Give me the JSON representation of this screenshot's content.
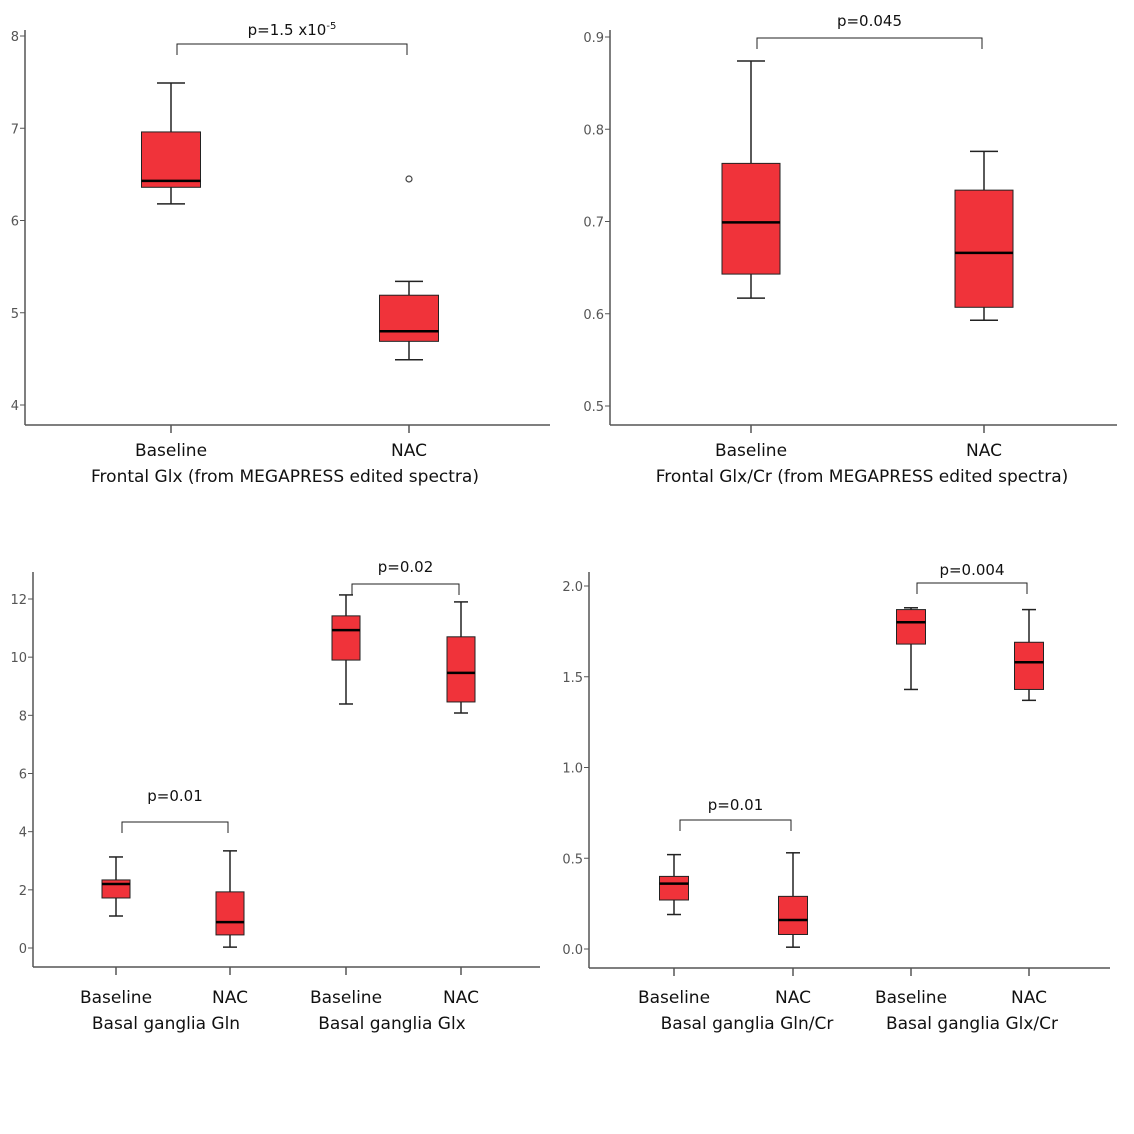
{
  "colors": {
    "box_fill": "#f0333a",
    "stroke": "#222222",
    "axis": "#555555"
  },
  "chart_data": [
    {
      "type": "box",
      "title": "",
      "ylabel": "",
      "yticks": [
        4,
        5,
        6,
        7,
        8
      ],
      "ylim": [
        3.78,
        8.07
      ],
      "categories": [
        "Baseline",
        "NAC"
      ],
      "group_titles": [
        "Frontal Glx (from MEGAPRESS edited spectra)"
      ],
      "boxes": [
        {
          "name": "Baseline",
          "min": 6.18,
          "q1": 6.36,
          "median": 6.43,
          "q3": 6.96,
          "max": 7.49,
          "outliers": []
        },
        {
          "name": "NAC",
          "min": 4.49,
          "q1": 4.69,
          "median": 4.8,
          "q3": 5.19,
          "max": 5.34,
          "outliers": [
            6.45
          ]
        }
      ],
      "annotations": [
        {
          "pair": [
            0,
            1
          ],
          "text": "p=1.5 x10",
          "sup": "-5"
        }
      ]
    },
    {
      "type": "box",
      "title": "",
      "ylabel": "",
      "yticks": [
        0.5,
        0.6,
        0.7,
        0.8,
        0.9
      ],
      "ylim": [
        0.478,
        0.906
      ],
      "categories": [
        "Baseline",
        "NAC"
      ],
      "group_titles": [
        "Frontal Glx/Cr (from MEGAPRESS edited spectra)"
      ],
      "boxes": [
        {
          "name": "Baseline",
          "min": 0.617,
          "q1": 0.643,
          "median": 0.699,
          "q3": 0.763,
          "max": 0.874,
          "outliers": []
        },
        {
          "name": "NAC",
          "min": 0.593,
          "q1": 0.607,
          "median": 0.666,
          "q3": 0.734,
          "max": 0.776,
          "outliers": []
        }
      ],
      "annotations": [
        {
          "pair": [
            0,
            1
          ],
          "text": "p=0.045",
          "sup": ""
        }
      ]
    },
    {
      "type": "box",
      "title": "",
      "ylabel": "",
      "yticks": [
        0,
        2,
        4,
        6,
        8,
        10,
        12
      ],
      "ylim": [
        -0.65,
        12.9
      ],
      "categories": [
        "Baseline",
        "NAC",
        "Baseline",
        "NAC"
      ],
      "group_titles": [
        "Basal ganglia Gln",
        "Basal ganglia Glx"
      ],
      "boxes": [
        {
          "name": "Gln Baseline",
          "min": 1.1,
          "q1": 1.72,
          "median": 2.2,
          "q3": 2.34,
          "max": 3.13,
          "outliers": []
        },
        {
          "name": "Gln NAC",
          "min": 0.03,
          "q1": 0.45,
          "median": 0.89,
          "q3": 1.93,
          "max": 3.34,
          "outliers": []
        },
        {
          "name": "Glx Baseline",
          "min": 8.39,
          "q1": 9.9,
          "median": 10.93,
          "q3": 11.42,
          "max": 12.14,
          "outliers": []
        },
        {
          "name": "Glx NAC",
          "min": 8.08,
          "q1": 8.46,
          "median": 9.46,
          "q3": 10.7,
          "max": 11.9,
          "outliers": []
        }
      ],
      "annotations": [
        {
          "pair": [
            0,
            1
          ],
          "text": "p=0.01",
          "sup": ""
        },
        {
          "pair": [
            2,
            3
          ],
          "text": "p=0.02",
          "sup": ""
        }
      ]
    },
    {
      "type": "box",
      "title": "",
      "ylabel": "",
      "yticks": [
        0.0,
        0.5,
        1.0,
        1.5,
        2.0
      ],
      "ylim": [
        -0.1,
        2.0
      ],
      "tick_labels": [
        "0.0",
        "0.5",
        "1.0",
        "1.5",
        "2.0"
      ],
      "categories": [
        "Baseline",
        "NAC",
        "Baseline",
        "NAC"
      ],
      "group_titles": [
        "Basal ganglia Gln/Cr",
        "Basal ganglia Glx/Cr"
      ],
      "boxes": [
        {
          "name": "Gln/Cr Baseline",
          "min": 0.19,
          "q1": 0.27,
          "median": 0.36,
          "q3": 0.4,
          "max": 0.52,
          "outliers": []
        },
        {
          "name": "Gln/Cr NAC",
          "min": 0.01,
          "q1": 0.08,
          "median": 0.16,
          "q3": 0.29,
          "max": 0.53,
          "outliers": []
        },
        {
          "name": "Glx/Cr Baseline",
          "min": 1.43,
          "q1": 1.68,
          "median": 1.8,
          "q3": 1.87,
          "max": 1.88,
          "outliers": []
        },
        {
          "name": "Glx/Cr NAC",
          "min": 1.37,
          "q1": 1.43,
          "median": 1.58,
          "q3": 1.69,
          "max": 1.87,
          "outliers": []
        }
      ],
      "annotations": [
        {
          "pair": [
            0,
            1
          ],
          "text": "p=0.01",
          "sup": ""
        },
        {
          "pair": [
            2,
            3
          ],
          "text": "p=0.004",
          "sup": ""
        }
      ]
    }
  ]
}
